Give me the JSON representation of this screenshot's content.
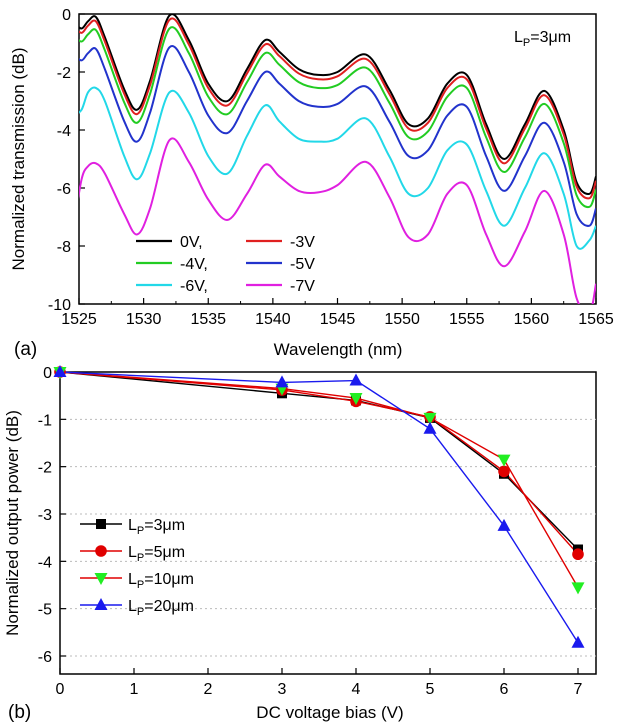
{
  "chart_data": [
    {
      "type": "line",
      "panel_label": "(a)",
      "xlabel": "Wavelength (nm)",
      "ylabel": "Normalized transmission (dB)",
      "xlim": [
        1525,
        1565
      ],
      "ylim": [
        -10,
        0
      ],
      "xticks": [
        1525,
        1530,
        1535,
        1540,
        1545,
        1550,
        1555,
        1560,
        1565
      ],
      "yticks": [
        0,
        -2,
        -4,
        -6,
        -8,
        -10
      ],
      "annotation": {
        "main": "L",
        "sub": "P",
        "rest": "=3μm"
      },
      "legend_position": "lower-left",
      "series": [
        {
          "name": "0V,",
          "color": "#000000",
          "offset": 0.0,
          "x": [
            1524.6,
            1525.2,
            1525.7,
            1526.3,
            1527.0,
            1528.5,
            1529.5,
            1530.5,
            1532.0,
            1533.5,
            1535.0,
            1536.5,
            1538.0,
            1539.4,
            1540.5,
            1542.0,
            1543.5,
            1545.0,
            1547.2,
            1549.0,
            1550.5,
            1552.0,
            1553.5,
            1555.0,
            1556.5,
            1557.9,
            1559.5,
            1561.0,
            1562.5,
            1563.5,
            1564.5,
            1565.0
          ],
          "y": [
            -0.3,
            -0.5,
            -0.25,
            -0.1,
            -0.8,
            -2.6,
            -3.3,
            -2.3,
            -0.05,
            -0.9,
            -2.4,
            -3.0,
            -1.9,
            -0.9,
            -1.3,
            -1.9,
            -2.1,
            -2.0,
            -1.4,
            -2.6,
            -3.8,
            -3.6,
            -2.4,
            -2.1,
            -3.8,
            -5.0,
            -3.8,
            -2.65,
            -4.0,
            -5.8,
            -6.2,
            -5.6
          ]
        },
        {
          "name": "-3V",
          "color": "#e02020",
          "offset": -0.15,
          "x": [
            1524.6,
            1525.2,
            1525.7,
            1526.3,
            1527.0,
            1528.5,
            1529.5,
            1530.5,
            1532.0,
            1533.5,
            1535.0,
            1536.5,
            1538.0,
            1539.4,
            1540.5,
            1542.0,
            1543.5,
            1545.0,
            1547.2,
            1549.0,
            1550.5,
            1552.0,
            1553.5,
            1555.0,
            1556.5,
            1557.9,
            1559.5,
            1561.0,
            1562.5,
            1563.5,
            1564.5,
            1565.0
          ],
          "y": [
            -0.3,
            -0.5,
            -0.25,
            -0.1,
            -0.8,
            -2.6,
            -3.3,
            -2.3,
            -0.05,
            -0.9,
            -2.4,
            -3.0,
            -1.9,
            -0.9,
            -1.3,
            -1.9,
            -2.1,
            -2.0,
            -1.4,
            -2.6,
            -3.8,
            -3.6,
            -2.4,
            -2.1,
            -3.8,
            -5.0,
            -3.8,
            -2.65,
            -4.0,
            -5.8,
            -6.2,
            -5.6
          ]
        },
        {
          "name": "-4V,",
          "color": "#22cc22",
          "offset": -0.45,
          "x": [
            1524.6,
            1525.2,
            1525.7,
            1526.3,
            1527.0,
            1528.5,
            1529.5,
            1530.5,
            1532.0,
            1533.5,
            1535.0,
            1536.5,
            1538.0,
            1539.4,
            1540.5,
            1542.0,
            1543.5,
            1545.0,
            1547.2,
            1549.0,
            1550.5,
            1552.0,
            1553.5,
            1555.0,
            1556.5,
            1557.9,
            1559.5,
            1561.0,
            1562.5,
            1563.5,
            1564.5,
            1565.0
          ],
          "y": [
            -0.3,
            -0.5,
            -0.25,
            -0.1,
            -0.8,
            -2.6,
            -3.3,
            -2.3,
            -0.05,
            -0.9,
            -2.4,
            -3.0,
            -1.9,
            -0.9,
            -1.3,
            -1.9,
            -2.1,
            -2.0,
            -1.4,
            -2.6,
            -3.8,
            -3.6,
            -2.4,
            -2.1,
            -3.8,
            -5.0,
            -3.8,
            -2.65,
            -4.0,
            -5.8,
            -6.2,
            -5.6
          ]
        },
        {
          "name": "-5V",
          "color": "#2233cc",
          "offset": -1.1,
          "x": [
            1524.6,
            1525.2,
            1525.7,
            1526.3,
            1527.0,
            1528.5,
            1529.5,
            1530.5,
            1532.0,
            1533.5,
            1535.0,
            1536.5,
            1538.0,
            1539.4,
            1540.5,
            1542.0,
            1543.5,
            1545.0,
            1547.2,
            1549.0,
            1550.5,
            1552.0,
            1553.5,
            1555.0,
            1556.5,
            1557.9,
            1559.5,
            1561.0,
            1562.5,
            1563.5,
            1564.5,
            1565.0
          ],
          "y": [
            -0.3,
            -0.5,
            -0.25,
            -0.1,
            -0.8,
            -2.6,
            -3.3,
            -2.3,
            -0.05,
            -0.9,
            -2.4,
            -3.0,
            -1.9,
            -0.9,
            -1.3,
            -1.9,
            -2.1,
            -2.0,
            -1.4,
            -2.6,
            -3.8,
            -3.6,
            -2.4,
            -2.1,
            -3.8,
            -5.0,
            -3.8,
            -2.65,
            -4.0,
            -5.8,
            -6.2,
            -5.6
          ]
        },
        {
          "name": "-6V,",
          "color": "#22d8e8",
          "offset": -2.5,
          "x": [
            1524.6,
            1525.2,
            1525.7,
            1526.3,
            1527.0,
            1528.5,
            1529.5,
            1530.5,
            1532.0,
            1533.5,
            1535.0,
            1536.5,
            1538.0,
            1539.4,
            1540.5,
            1542.0,
            1543.5,
            1545.0,
            1547.2,
            1549.0,
            1550.5,
            1552.0,
            1553.5,
            1555.0,
            1556.5,
            1557.9,
            1559.5,
            1561.0,
            1562.5,
            1563.5,
            1564.5,
            1565.0
          ],
          "y": [
            -1.0,
            -0.8,
            -0.2,
            -0.05,
            -0.5,
            -2.4,
            -3.2,
            -2.3,
            -0.2,
            -0.9,
            -2.4,
            -3.0,
            -1.7,
            -0.65,
            -1.2,
            -1.8,
            -1.9,
            -1.8,
            -1.1,
            -2.4,
            -3.7,
            -3.5,
            -2.2,
            -2.0,
            -3.6,
            -4.8,
            -3.5,
            -2.3,
            -3.7,
            -5.5,
            -5.3,
            -4.8
          ]
        },
        {
          "name": "-7V",
          "color": "#e020e0",
          "offset": -4.3,
          "x": [
            1524.6,
            1525.2,
            1525.7,
            1526.3,
            1527.0,
            1528.5,
            1529.5,
            1530.5,
            1532.0,
            1533.5,
            1535.0,
            1536.5,
            1538.0,
            1539.4,
            1540.5,
            1542.0,
            1543.5,
            1545.0,
            1547.2,
            1549.0,
            1550.5,
            1552.0,
            1553.5,
            1555.0,
            1556.5,
            1557.9,
            1559.5,
            1561.0,
            1562.5,
            1563.5,
            1564.5,
            1565.0
          ],
          "y": [
            -3.0,
            -1.4,
            -0.95,
            -0.85,
            -1.2,
            -2.6,
            -3.3,
            -2.4,
            -0.05,
            -0.8,
            -2.1,
            -2.8,
            -1.9,
            -0.9,
            -1.3,
            -1.8,
            -1.85,
            -1.6,
            -0.8,
            -2.0,
            -3.4,
            -3.3,
            -1.9,
            -1.6,
            -3.3,
            -4.4,
            -3.2,
            -1.8,
            -3.3,
            -5.5,
            -6.0,
            -5.0
          ]
        }
      ]
    },
    {
      "type": "line",
      "panel_label": "(b)",
      "xlabel": "DC voltage bias (V)",
      "ylabel": "Normalized output power (dB)",
      "xlim": [
        0,
        7
      ],
      "ylim": [
        -6,
        0
      ],
      "xticks": [
        0,
        1,
        2,
        3,
        4,
        5,
        6,
        7
      ],
      "yticks": [
        0,
        -1,
        -2,
        -3,
        -4,
        -5,
        -6
      ],
      "grid": "horizontal dotted",
      "legend_position": "lower-left",
      "series": [
        {
          "name_main": "L",
          "name_sub": "P",
          "name_rest": "=3μm",
          "color": "#000000",
          "marker": "square",
          "x": [
            0,
            3,
            4,
            5,
            6,
            7
          ],
          "y": [
            0,
            -0.45,
            -0.6,
            -0.97,
            -2.15,
            -3.75
          ]
        },
        {
          "name_main": "L",
          "name_sub": "P",
          "name_rest": "=5μm",
          "color": "#e00000",
          "marker": "circle",
          "x": [
            0,
            3,
            4,
            5,
            6,
            7
          ],
          "y": [
            0,
            -0.38,
            -0.62,
            -0.95,
            -2.1,
            -3.85
          ]
        },
        {
          "name_main": "L",
          "name_sub": "P",
          "name_rest": "=10μm",
          "color": "#22ee22",
          "marker": "triangle-down",
          "x": [
            0,
            3,
            4,
            5,
            6,
            7
          ],
          "y": [
            0,
            -0.35,
            -0.55,
            -0.97,
            -1.85,
            -4.55
          ]
        },
        {
          "name_main": "L",
          "name_sub": "P",
          "name_rest": "=20μm",
          "color": "#1a1aee",
          "marker": "triangle-up",
          "x": [
            0,
            3,
            4,
            5,
            6,
            7
          ],
          "y": [
            0,
            -0.22,
            -0.18,
            -1.2,
            -3.25,
            -5.72
          ]
        }
      ]
    }
  ]
}
